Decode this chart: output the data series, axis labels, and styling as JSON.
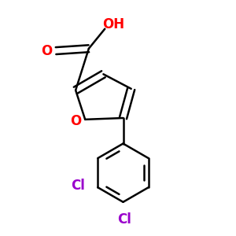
{
  "bg_color": "#ffffff",
  "line_color": "#000000",
  "oxygen_color": "#ff0000",
  "chlorine_color": "#9900cc",
  "bond_lw": 1.8,
  "figsize": [
    3.0,
    3.0
  ],
  "dpi": 100,
  "xlim": [
    0.2,
    2.8
  ],
  "ylim": [
    0.0,
    3.2
  ]
}
